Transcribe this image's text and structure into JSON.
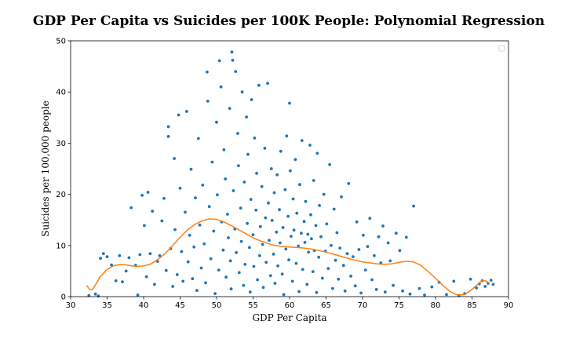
{
  "chart_data": {
    "type": "scatter",
    "title": "GDP Per Capita vs Suicides per 100K People: Polynomial Regression",
    "xlabel": "GDP Per Capita",
    "ylabel": "Suicides per 100,000 people",
    "xlim": [
      30,
      90
    ],
    "ylim": [
      0,
      50
    ],
    "xticks": [
      "30",
      "35",
      "40",
      "45",
      "50",
      "55",
      "60",
      "65",
      "70",
      "75",
      "80",
      "85",
      "90"
    ],
    "yticks": [
      "0",
      "10",
      "20",
      "30",
      "40",
      "50"
    ],
    "grid": false,
    "legend_position": "top-right",
    "legend_entries": [],
    "colors": {
      "points": "#1f77b4",
      "fit": "#ff7f0e"
    },
    "series": [
      {
        "kind": "scatter",
        "points": [
          [
            32.5,
            0.2
          ],
          [
            33.4,
            0.5
          ],
          [
            33.8,
            0.1
          ],
          [
            34.1,
            7.5
          ],
          [
            34.5,
            8.4
          ],
          [
            35.0,
            7.8
          ],
          [
            35.6,
            6.2
          ],
          [
            36.2,
            3.1
          ],
          [
            36.7,
            8.0
          ],
          [
            37.1,
            2.9
          ],
          [
            37.6,
            5.0
          ],
          [
            38.0,
            7.6
          ],
          [
            38.3,
            17.4
          ],
          [
            38.9,
            6.1
          ],
          [
            39.2,
            0.3
          ],
          [
            39.5,
            8.2
          ],
          [
            39.8,
            19.8
          ],
          [
            40.1,
            13.9
          ],
          [
            40.4,
            3.9
          ],
          [
            40.6,
            20.4
          ],
          [
            40.9,
            8.4
          ],
          [
            41.2,
            16.7
          ],
          [
            41.5,
            2.4
          ],
          [
            41.9,
            6.9
          ],
          [
            42.2,
            8.0
          ],
          [
            42.5,
            14.8
          ],
          [
            42.8,
            19.2
          ],
          [
            43.1,
            5.1
          ],
          [
            43.4,
            31.3
          ],
          [
            43.4,
            33.2
          ],
          [
            43.7,
            9.4
          ],
          [
            44.0,
            2.0
          ],
          [
            44.2,
            27.0
          ],
          [
            44.3,
            13.1
          ],
          [
            44.6,
            4.3
          ],
          [
            44.8,
            35.5
          ],
          [
            45.0,
            21.2
          ],
          [
            45.2,
            8.8
          ],
          [
            45.4,
            3.0
          ],
          [
            45.7,
            16.5
          ],
          [
            45.9,
            36.2
          ],
          [
            46.1,
            6.8
          ],
          [
            46.3,
            12.0
          ],
          [
            46.5,
            24.9
          ],
          [
            46.7,
            3.5
          ],
          [
            46.9,
            9.7
          ],
          [
            47.1,
            19.3
          ],
          [
            47.3,
            1.2
          ],
          [
            47.5,
            30.9
          ],
          [
            47.7,
            14.0
          ],
          [
            47.9,
            5.6
          ],
          [
            48.1,
            21.8
          ],
          [
            48.3,
            10.3
          ],
          [
            48.5,
            2.7
          ],
          [
            48.7,
            43.9
          ],
          [
            48.8,
            38.2
          ],
          [
            49.0,
            17.6
          ],
          [
            49.2,
            7.4
          ],
          [
            49.4,
            26.3
          ],
          [
            49.6,
            12.8
          ],
          [
            49.8,
            0.6
          ],
          [
            50.0,
            34.1
          ],
          [
            50.1,
            19.9
          ],
          [
            50.3,
            5.2
          ],
          [
            50.4,
            46.1
          ],
          [
            50.6,
            41.0
          ],
          [
            50.7,
            14.6
          ],
          [
            50.9,
            9.1
          ],
          [
            51.0,
            28.7
          ],
          [
            51.2,
            23.0
          ],
          [
            51.3,
            3.8
          ],
          [
            51.5,
            16.1
          ],
          [
            51.6,
            11.5
          ],
          [
            51.8,
            36.8
          ],
          [
            51.9,
            7.0
          ],
          [
            52.0,
            1.5
          ],
          [
            52.1,
            47.8
          ],
          [
            52.2,
            46.2
          ],
          [
            52.3,
            20.7
          ],
          [
            52.5,
            13.2
          ],
          [
            52.6,
            44.0
          ],
          [
            52.7,
            8.6
          ],
          [
            52.9,
            31.9
          ],
          [
            53.0,
            25.6
          ],
          [
            53.1,
            4.7
          ],
          [
            53.3,
            17.3
          ],
          [
            53.4,
            10.8
          ],
          [
            53.5,
            40.0
          ],
          [
            53.7,
            2.2
          ],
          [
            53.8,
            22.4
          ],
          [
            53.9,
            6.3
          ],
          [
            54.1,
            35.1
          ],
          [
            54.2,
            14.3
          ],
          [
            54.3,
            27.8
          ],
          [
            54.5,
            9.6
          ],
          [
            54.6,
            0.9
          ],
          [
            54.7,
            19.0
          ],
          [
            54.8,
            38.5
          ],
          [
            55.0,
            12.1
          ],
          [
            55.1,
            5.9
          ],
          [
            55.2,
            31.0
          ],
          [
            55.4,
            16.9
          ],
          [
            55.5,
            24.1
          ],
          [
            55.6,
            3.3
          ],
          [
            55.8,
            41.3
          ],
          [
            55.9,
            8.0
          ],
          [
            56.0,
            13.7
          ],
          [
            56.2,
            21.5
          ],
          [
            56.3,
            10.2
          ],
          [
            56.4,
            1.8
          ],
          [
            56.6,
            29.0
          ],
          [
            56.7,
            15.4
          ],
          [
            56.8,
            6.7
          ],
          [
            57.0,
            41.7
          ],
          [
            57.1,
            18.3
          ],
          [
            57.2,
            11.0
          ],
          [
            57.4,
            4.1
          ],
          [
            57.5,
            25.0
          ],
          [
            57.6,
            14.9
          ],
          [
            57.8,
            8.3
          ],
          [
            57.9,
            20.3
          ],
          [
            58.0,
            2.6
          ],
          [
            58.2,
            12.6
          ],
          [
            58.3,
            23.8
          ],
          [
            58.4,
            6.0
          ],
          [
            58.6,
            17.0
          ],
          [
            58.7,
            10.5
          ],
          [
            58.8,
            28.4
          ],
          [
            59.0,
            4.4
          ],
          [
            59.1,
            13.5
          ],
          [
            59.2,
            0.4
          ],
          [
            59.4,
            20.9
          ],
          [
            59.5,
            9.3
          ],
          [
            59.6,
            31.4
          ],
          [
            59.8,
            15.7
          ],
          [
            59.9,
            7.2
          ],
          [
            60.0,
            37.8
          ],
          [
            60.1,
            24.6
          ],
          [
            60.2,
            11.8
          ],
          [
            60.4,
            3.0
          ],
          [
            60.5,
            19.1
          ],
          [
            60.6,
            13.0
          ],
          [
            60.8,
            26.8
          ],
          [
            60.9,
            6.5
          ],
          [
            61.0,
            16.3
          ],
          [
            61.2,
            9.9
          ],
          [
            61.3,
            1.0
          ],
          [
            61.4,
            21.9
          ],
          [
            61.6,
            12.4
          ],
          [
            61.7,
            30.5
          ],
          [
            61.8,
            5.3
          ],
          [
            62.0,
            14.7
          ],
          [
            62.1,
            10.6
          ],
          [
            62.2,
            18.6
          ],
          [
            62.4,
            2.4
          ],
          [
            62.5,
            12.2
          ],
          [
            62.6,
            8.7
          ],
          [
            62.8,
            29.6
          ],
          [
            62.9,
            16.0
          ],
          [
            63.0,
            11.3
          ],
          [
            63.2,
            4.9
          ],
          [
            63.3,
            22.7
          ],
          [
            63.4,
            9.0
          ],
          [
            63.6,
            13.9
          ],
          [
            63.7,
            0.8
          ],
          [
            63.8,
            28.0
          ],
          [
            64.0,
            7.7
          ],
          [
            64.1,
            17.8
          ],
          [
            64.3,
            11.7
          ],
          [
            64.5,
            3.6
          ],
          [
            64.7,
            20.0
          ],
          [
            64.9,
            8.9
          ],
          [
            65.1,
            14.2
          ],
          [
            65.3,
            5.5
          ],
          [
            65.5,
            25.8
          ],
          [
            65.7,
            10.0
          ],
          [
            65.9,
            1.6
          ],
          [
            66.1,
            17.1
          ],
          [
            66.3,
            7.1
          ],
          [
            66.5,
            12.5
          ],
          [
            66.7,
            3.4
          ],
          [
            66.9,
            9.5
          ],
          [
            67.1,
            19.5
          ],
          [
            67.4,
            6.1
          ],
          [
            67.6,
            1.1
          ],
          [
            67.9,
            8.4
          ],
          [
            68.1,
            22.1
          ],
          [
            68.4,
            4.0
          ],
          [
            68.7,
            7.8
          ],
          [
            69.0,
            2.1
          ],
          [
            69.2,
            14.6
          ],
          [
            69.5,
            9.2
          ],
          [
            69.8,
            0.7
          ],
          [
            70.1,
            12.0
          ],
          [
            70.4,
            5.2
          ],
          [
            70.7,
            9.8
          ],
          [
            71.0,
            15.3
          ],
          [
            71.3,
            3.3
          ],
          [
            71.6,
            8.0
          ],
          [
            71.9,
            1.4
          ],
          [
            72.2,
            11.7
          ],
          [
            72.5,
            6.6
          ],
          [
            72.8,
            13.8
          ],
          [
            73.1,
            0.9
          ],
          [
            73.5,
            10.5
          ],
          [
            73.8,
            7.0
          ],
          [
            74.2,
            2.2
          ],
          [
            74.6,
            12.4
          ],
          [
            75.1,
            9.0
          ],
          [
            75.5,
            1.1
          ],
          [
            76.0,
            11.6
          ],
          [
            76.5,
            0.5
          ],
          [
            77.0,
            17.7
          ],
          [
            77.8,
            1.6
          ],
          [
            78.5,
            0.3
          ],
          [
            79.5,
            1.9
          ],
          [
            80.5,
            2.8
          ],
          [
            81.5,
            0.4
          ],
          [
            82.5,
            3.0
          ],
          [
            83.2,
            0.2
          ],
          [
            84.0,
            0.6
          ],
          [
            84.8,
            3.4
          ],
          [
            85.6,
            1.7
          ],
          [
            86.0,
            2.5
          ],
          [
            86.4,
            3.1
          ],
          [
            86.8,
            2.0
          ],
          [
            87.2,
            2.6
          ],
          [
            87.6,
            3.2
          ],
          [
            87.9,
            2.4
          ]
        ]
      },
      {
        "kind": "line",
        "points": [
          [
            32.2,
            2.2
          ],
          [
            32.6,
            1.4
          ],
          [
            33.0,
            1.4
          ],
          [
            33.5,
            2.5
          ],
          [
            34.0,
            3.8
          ],
          [
            35.0,
            5.3
          ],
          [
            36.0,
            6.1
          ],
          [
            37.0,
            6.3
          ],
          [
            38.0,
            6.1
          ],
          [
            39.0,
            5.9
          ],
          [
            40.0,
            6.0
          ],
          [
            41.0,
            6.4
          ],
          [
            42.0,
            7.3
          ],
          [
            43.0,
            8.5
          ],
          [
            44.0,
            10.0
          ],
          [
            45.0,
            11.6
          ],
          [
            46.0,
            13.0
          ],
          [
            47.0,
            14.1
          ],
          [
            48.0,
            14.8
          ],
          [
            49.0,
            15.2
          ],
          [
            50.0,
            15.1
          ],
          [
            51.0,
            14.6
          ],
          [
            52.0,
            13.9
          ],
          [
            53.0,
            13.1
          ],
          [
            54.0,
            12.3
          ],
          [
            55.0,
            11.5
          ],
          [
            56.0,
            10.9
          ],
          [
            57.0,
            10.4
          ],
          [
            58.0,
            10.0
          ],
          [
            59.0,
            9.8
          ],
          [
            60.0,
            9.7
          ],
          [
            61.0,
            9.6
          ],
          [
            62.0,
            9.5
          ],
          [
            63.0,
            9.3
          ],
          [
            64.0,
            9.0
          ],
          [
            65.0,
            8.7
          ],
          [
            66.0,
            8.3
          ],
          [
            67.0,
            7.9
          ],
          [
            68.0,
            7.5
          ],
          [
            69.0,
            7.1
          ],
          [
            70.0,
            6.8
          ],
          [
            71.0,
            6.6
          ],
          [
            72.0,
            6.4
          ],
          [
            73.0,
            6.3
          ],
          [
            74.0,
            6.4
          ],
          [
            75.0,
            6.7
          ],
          [
            76.0,
            6.9
          ],
          [
            77.0,
            6.8
          ],
          [
            78.0,
            6.1
          ],
          [
            79.0,
            4.9
          ],
          [
            80.0,
            3.6
          ],
          [
            81.0,
            2.2
          ],
          [
            82.0,
            1.0
          ],
          [
            83.0,
            0.3
          ],
          [
            84.0,
            0.4
          ],
          [
            85.0,
            1.4
          ],
          [
            86.0,
            2.7
          ],
          [
            86.5,
            3.2
          ],
          [
            87.0,
            3.0
          ],
          [
            87.4,
            2.6
          ]
        ]
      }
    ]
  }
}
